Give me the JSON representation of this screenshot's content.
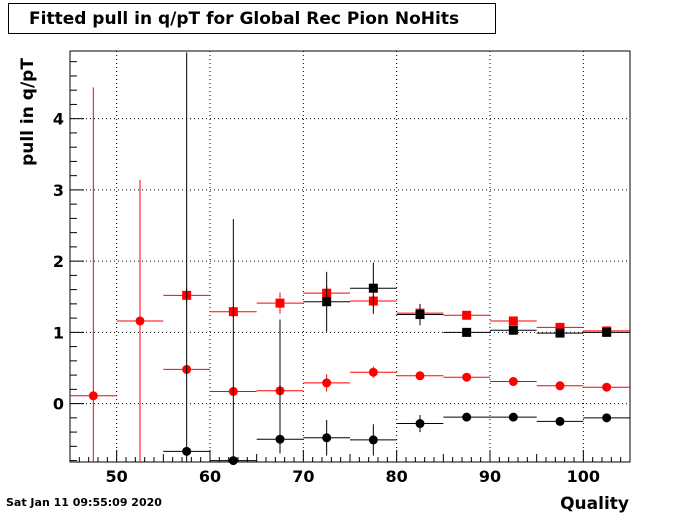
{
  "title": "Fitted pull in q/pT for Global Rec Pion NoHits",
  "timestamp": "Sat Jan 11 09:55:09 2020",
  "chart_data": {
    "type": "scatter",
    "title": "Fitted pull in q/pT for Global Rec Pion NoHits",
    "xlabel": "Quality",
    "ylabel": "pull in q/pT",
    "xlim": [
      45,
      105
    ],
    "ylim": [
      -0.82,
      4.95
    ],
    "x_ticks": [
      50,
      60,
      70,
      80,
      90,
      100
    ],
    "y_ticks": [
      0,
      1,
      2,
      3,
      4
    ],
    "grid": true,
    "series": [
      {
        "color": "#ff0000",
        "marker": "square",
        "points": [
          {
            "x": 57.5,
            "y": 1.52,
            "xerr": 2.5,
            "yerr": [
              0.1,
              0.1
            ]
          },
          {
            "x": 62.5,
            "y": 1.29,
            "xerr": 2.5,
            "yerr": [
              0.08,
              0.08
            ]
          },
          {
            "x": 67.5,
            "y": 1.41,
            "xerr": 2.5,
            "yerr": [
              0.15,
              0.15
            ]
          },
          {
            "x": 72.5,
            "y": 1.55,
            "xerr": 2.5,
            "yerr": [
              0.1,
              0.1
            ]
          },
          {
            "x": 77.5,
            "y": 1.44,
            "xerr": 2.5,
            "yerr": [
              0.08,
              0.08
            ]
          },
          {
            "x": 82.5,
            "y": 1.27,
            "xerr": 2.5,
            "yerr": [
              0.06,
              0.06
            ]
          },
          {
            "x": 87.5,
            "y": 1.24,
            "xerr": 2.5,
            "yerr": [
              0.05,
              0.05
            ]
          },
          {
            "x": 92.5,
            "y": 1.16,
            "xerr": 2.5,
            "yerr": [
              0.05,
              0.05
            ]
          },
          {
            "x": 97.5,
            "y": 1.07,
            "xerr": 2.5,
            "yerr": [
              0.04,
              0.04
            ]
          },
          {
            "x": 102.5,
            "y": 1.02,
            "xerr": 2.5,
            "yerr": [
              0.04,
              0.04
            ]
          }
        ]
      },
      {
        "color": "#ff0000",
        "marker": "circle",
        "points": [
          {
            "x": 47.5,
            "y": 0.11,
            "xerr": 2.5,
            "yerr": [
              0.95,
              4.33
            ]
          },
          {
            "x": 52.5,
            "y": 1.16,
            "xerr": 2.5,
            "yerr": [
              1.98,
              1.98
            ]
          },
          {
            "x": 57.5,
            "y": 0.48,
            "xerr": 2.5,
            "yerr": [
              0.06,
              0.06
            ]
          },
          {
            "x": 62.5,
            "y": 0.17,
            "xerr": 2.5,
            "yerr": [
              0.05,
              0.05
            ]
          },
          {
            "x": 67.5,
            "y": 0.18,
            "xerr": 2.5,
            "yerr": [
              0.05,
              0.05
            ]
          },
          {
            "x": 72.5,
            "y": 0.29,
            "xerr": 2.5,
            "yerr": [
              0.12,
              0.12
            ]
          },
          {
            "x": 77.5,
            "y": 0.44,
            "xerr": 2.5,
            "yerr": [
              0.08,
              0.08
            ]
          },
          {
            "x": 82.5,
            "y": 0.39,
            "xerr": 2.5,
            "yerr": [
              0.05,
              0.05
            ]
          },
          {
            "x": 87.5,
            "y": 0.37,
            "xerr": 2.5,
            "yerr": [
              0.04,
              0.04
            ]
          },
          {
            "x": 92.5,
            "y": 0.31,
            "xerr": 2.5,
            "yerr": [
              0.04,
              0.04
            ]
          },
          {
            "x": 97.5,
            "y": 0.25,
            "xerr": 2.5,
            "yerr": [
              0.03,
              0.03
            ]
          },
          {
            "x": 102.5,
            "y": 0.23,
            "xerr": 2.5,
            "yerr": [
              0.03,
              0.03
            ]
          }
        ]
      },
      {
        "color": "#000000",
        "marker": "square",
        "points": [
          {
            "x": 72.5,
            "y": 1.43,
            "xerr": 2.5,
            "yerr": [
              0.42,
              0.42
            ]
          },
          {
            "x": 77.5,
            "y": 1.62,
            "xerr": 2.5,
            "yerr": [
              0.36,
              0.36
            ]
          },
          {
            "x": 82.5,
            "y": 1.25,
            "xerr": 2.5,
            "yerr": [
              0.15,
              0.15
            ]
          },
          {
            "x": 87.5,
            "y": 1.0,
            "xerr": 2.5,
            "yerr": [
              0.06,
              0.06
            ]
          },
          {
            "x": 92.5,
            "y": 1.03,
            "xerr": 2.5,
            "yerr": [
              0.04,
              0.04
            ]
          },
          {
            "x": 97.5,
            "y": 0.99,
            "xerr": 2.5,
            "yerr": [
              0.04,
              0.04
            ]
          },
          {
            "x": 102.5,
            "y": 1.0,
            "xerr": 2.5,
            "yerr": [
              0.04,
              0.04
            ]
          }
        ]
      },
      {
        "color": "#000000",
        "marker": "circle",
        "points": [
          {
            "x": 57.5,
            "y": -0.67,
            "xerr": 2.5,
            "yerr": [
              0.2,
              5.6
            ]
          },
          {
            "x": 62.5,
            "y": -0.8,
            "xerr": 2.5,
            "yerr": [
              0.1,
              3.39
            ]
          },
          {
            "x": 67.5,
            "y": -0.5,
            "xerr": 2.5,
            "yerr": [
              0.2,
              1.68
            ]
          },
          {
            "x": 72.5,
            "y": -0.48,
            "xerr": 2.5,
            "yerr": [
              0.25,
              0.25
            ]
          },
          {
            "x": 77.5,
            "y": -0.51,
            "xerr": 2.5,
            "yerr": [
              0.22,
              0.22
            ]
          },
          {
            "x": 82.5,
            "y": -0.28,
            "xerr": 2.5,
            "yerr": [
              0.12,
              0.12
            ]
          },
          {
            "x": 87.5,
            "y": -0.19,
            "xerr": 2.5,
            "yerr": [
              0.06,
              0.06
            ]
          },
          {
            "x": 92.5,
            "y": -0.19,
            "xerr": 2.5,
            "yerr": [
              0.05,
              0.05
            ]
          },
          {
            "x": 97.5,
            "y": -0.25,
            "xerr": 2.5,
            "yerr": [
              0.04,
              0.04
            ]
          },
          {
            "x": 102.5,
            "y": -0.2,
            "xerr": 2.5,
            "yerr": [
              0.04,
              0.04
            ]
          }
        ]
      }
    ]
  }
}
